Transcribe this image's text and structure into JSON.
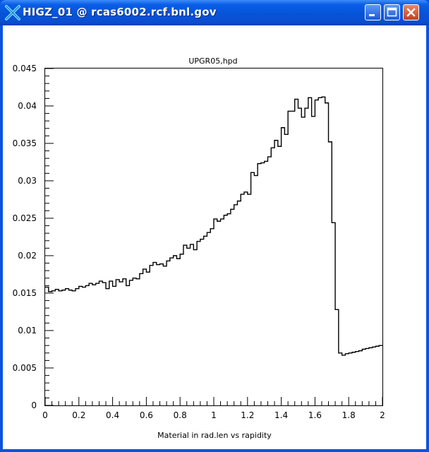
{
  "window": {
    "title": "HIGZ_01 @  rcas6002.rcf.bnl.gov",
    "icon": "higz-x-icon",
    "buttons": [
      "minimize-icon",
      "maximize-icon",
      "close-icon"
    ]
  },
  "chart_data": {
    "type": "histogram",
    "title": "UPGR05,hpd",
    "xlabel": "Material in rad.len vs rapidity",
    "ylabel": "",
    "xlim": [
      0,
      2
    ],
    "ylim": [
      0,
      0.045
    ],
    "xticks": [
      0,
      0.2,
      0.4,
      0.6,
      0.8,
      1,
      1.2,
      1.4,
      1.6,
      1.8,
      2
    ],
    "xtick_labels": [
      "0",
      "0.2",
      "0.4",
      "0.6",
      "0.8",
      "1",
      "1.2",
      "1.4",
      "1.6",
      "1.8",
      "2"
    ],
    "yticks": [
      0,
      0.005,
      0.01,
      0.015,
      0.02,
      0.025,
      0.03,
      0.035,
      0.04,
      0.045
    ],
    "ytick_labels": [
      "0",
      "0.005",
      "0.01",
      "0.015",
      "0.02",
      "0.025",
      "0.03",
      "0.035",
      "0.04",
      "0.045"
    ],
    "grid": false,
    "bin_width": 0.02,
    "bin_edges_start": 0,
    "values": [
      0.0158,
      0.0152,
      0.0153,
      0.0155,
      0.0153,
      0.0154,
      0.0156,
      0.0154,
      0.0153,
      0.0156,
      0.0159,
      0.0158,
      0.016,
      0.0163,
      0.0161,
      0.0163,
      0.0166,
      0.0164,
      0.0156,
      0.0166,
      0.0159,
      0.0168,
      0.0165,
      0.0169,
      0.016,
      0.0167,
      0.017,
      0.0169,
      0.0176,
      0.0182,
      0.0178,
      0.0187,
      0.0191,
      0.0188,
      0.0189,
      0.0186,
      0.0193,
      0.0197,
      0.02,
      0.0196,
      0.0202,
      0.0214,
      0.021,
      0.0215,
      0.0208,
      0.0219,
      0.0222,
      0.0226,
      0.0231,
      0.0236,
      0.0249,
      0.0246,
      0.0249,
      0.0254,
      0.0256,
      0.0262,
      0.0268,
      0.0273,
      0.0282,
      0.0285,
      0.0282,
      0.0311,
      0.0307,
      0.0323,
      0.0324,
      0.0326,
      0.0332,
      0.0344,
      0.0354,
      0.0346,
      0.0371,
      0.0362,
      0.0393,
      0.0393,
      0.0409,
      0.0397,
      0.0385,
      0.0397,
      0.0411,
      0.0386,
      0.0408,
      0.0411,
      0.0412,
      0.0404,
      0.0352,
      0.0244,
      0.0128,
      0.007,
      0.0067,
      0.0069,
      0.007,
      0.0071,
      0.0072,
      0.0073,
      0.0075,
      0.0076,
      0.0077,
      0.0078,
      0.0079,
      0.008
    ]
  }
}
